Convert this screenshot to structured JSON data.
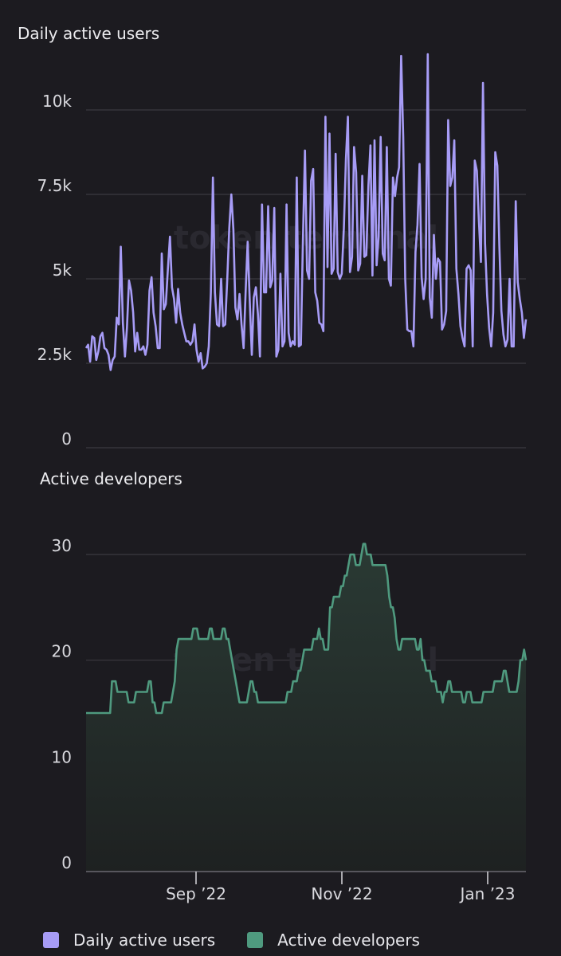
{
  "watermark": "token terminal",
  "legend": [
    {
      "label": "Daily active users",
      "color": "#a79cf6"
    },
    {
      "label": "Active developers",
      "color": "#4f9a7f"
    }
  ],
  "chart_data": [
    {
      "type": "line",
      "title": "Daily active users",
      "color": "#a79cf6",
      "x_start": "2022-07-17",
      "x_end": "2023-01-17",
      "y_ticks": [
        "0",
        "2.5k",
        "5k",
        "7.5k",
        "10k"
      ],
      "y_tick_values": [
        0,
        2500,
        5000,
        7500,
        10000
      ],
      "ylim": [
        0,
        11600
      ],
      "values": [
        2950,
        3050,
        2550,
        3300,
        3250,
        2600,
        2850,
        3300,
        3400,
        2950,
        2900,
        2750,
        2300,
        2600,
        2700,
        3850,
        3650,
        5950,
        3700,
        2700,
        3550,
        4950,
        4650,
        4000,
        2850,
        3400,
        2900,
        2900,
        3000,
        2750,
        3050,
        4650,
        5050,
        4000,
        3600,
        2950,
        2950,
        5750,
        4100,
        4250,
        5300,
        6250,
        4750,
        4400,
        3700,
        4700,
        4000,
        3650,
        3400,
        3150,
        3150,
        3050,
        3150,
        3650,
        2900,
        2550,
        2800,
        2350,
        2400,
        2500,
        3000,
        4600,
        8000,
        4600,
        3650,
        3600,
        5000,
        3600,
        3650,
        5000,
        6500,
        7500,
        6450,
        4150,
        3800,
        4550,
        3650,
        2950,
        4650,
        6100,
        4350,
        2750,
        4450,
        4750,
        3950,
        2700,
        7200,
        4600,
        4600,
        7150,
        4750,
        4950,
        7100,
        2700,
        2900,
        5150,
        3000,
        3150,
        7200,
        3400,
        3000,
        3150,
        3050,
        8000,
        3000,
        3050,
        6100,
        8800,
        5250,
        5000,
        7900,
        8250,
        4600,
        4350,
        3700,
        3650,
        3450,
        9800,
        5350,
        9300,
        5150,
        5300,
        8700,
        5200,
        5000,
        5150,
        6500,
        8550,
        9800,
        5200,
        5650,
        8900,
        8150,
        5250,
        5450,
        8050,
        5650,
        5700,
        7750,
        8950,
        5100,
        9100,
        5400,
        6250,
        9200,
        5750,
        5550,
        8900,
        5000,
        4800,
        8000,
        7450,
        8000,
        8300,
        11600,
        9200,
        5000,
        3500,
        3450,
        3450,
        3000,
        5800,
        6600,
        8400,
        5050,
        4400,
        5000,
        11650,
        4450,
        3850,
        6300,
        5000,
        5600,
        5500,
        3500,
        3650,
        4050,
        9700,
        7750,
        8000,
        9100,
        5300,
        4550,
        3600,
        3250,
        3000,
        5300,
        5400,
        5250,
        3000,
        8500,
        8200,
        6750,
        5500,
        10800,
        6050,
        4550,
        3550,
        3000,
        4000,
        8750,
        8350,
        6000,
        4050,
        3350,
        3000,
        3200,
        5000,
        3000,
        3000,
        7300,
        4900,
        4400,
        4000,
        3250,
        3800
      ]
    },
    {
      "type": "area",
      "title": "Active developers",
      "color": "#4f9a7f",
      "x_start": "2022-07-17",
      "x_end": "2023-01-17",
      "x_ticks": [
        {
          "label": "Sep ’22",
          "date": "2022-09-01"
        },
        {
          "label": "Nov ’22",
          "date": "2022-11-01"
        },
        {
          "label": "Jan ’23",
          "date": "2023-01-01"
        }
      ],
      "y_ticks": [
        "0",
        "10",
        "20",
        "30"
      ],
      "y_tick_values": [
        0,
        10,
        20,
        30
      ],
      "ylim": [
        0,
        30.5
      ],
      "values": [
        15,
        15,
        15,
        15,
        15,
        15,
        15,
        15,
        15,
        15,
        15,
        15,
        15,
        15,
        18,
        18,
        18,
        17,
        17,
        17,
        17,
        17,
        17,
        16,
        16,
        16,
        16,
        17,
        17,
        17,
        17,
        17,
        17,
        17,
        18,
        18,
        16,
        16,
        15,
        15,
        15,
        15,
        16,
        16,
        16,
        16,
        16,
        17,
        18,
        21,
        22,
        22,
        22,
        22,
        22,
        22,
        22,
        22,
        23,
        23,
        23,
        22,
        22,
        22,
        22,
        22,
        22,
        23,
        23,
        22,
        22,
        22,
        22,
        22,
        23,
        23,
        22,
        22,
        21,
        20,
        19,
        18,
        17,
        16,
        16,
        16,
        16,
        16,
        17,
        18,
        18,
        17,
        17,
        16,
        16,
        16,
        16,
        16,
        16,
        16,
        16,
        16,
        16,
        16,
        16,
        16,
        16,
        16,
        16,
        17,
        17,
        17,
        18,
        18,
        18,
        19,
        19,
        20,
        21,
        21,
        21,
        21,
        21,
        22,
        22,
        22,
        23,
        22,
        22,
        21,
        21,
        21,
        25,
        25,
        26,
        26,
        26,
        26,
        27,
        27,
        28,
        28,
        29,
        30,
        30,
        30,
        29,
        29,
        29,
        30,
        31,
        31,
        30,
        30,
        30,
        29,
        29,
        29,
        29,
        29,
        29,
        29,
        29,
        28,
        26,
        25,
        25,
        24,
        22,
        21,
        21,
        22,
        22,
        22,
        22,
        22,
        22,
        22,
        22,
        21,
        21,
        22,
        20,
        20,
        19,
        19,
        19,
        18,
        18,
        18,
        17,
        17,
        17,
        16,
        17,
        17,
        18,
        18,
        17,
        17,
        17,
        17,
        17,
        17,
        16,
        16,
        17,
        17,
        17,
        16,
        16,
        16,
        16,
        16,
        16,
        17,
        17,
        17,
        17,
        17,
        17,
        18,
        18,
        18,
        18,
        18,
        19,
        19,
        18,
        17,
        17,
        17,
        17,
        17,
        18,
        20,
        20,
        21,
        20
      ]
    }
  ]
}
